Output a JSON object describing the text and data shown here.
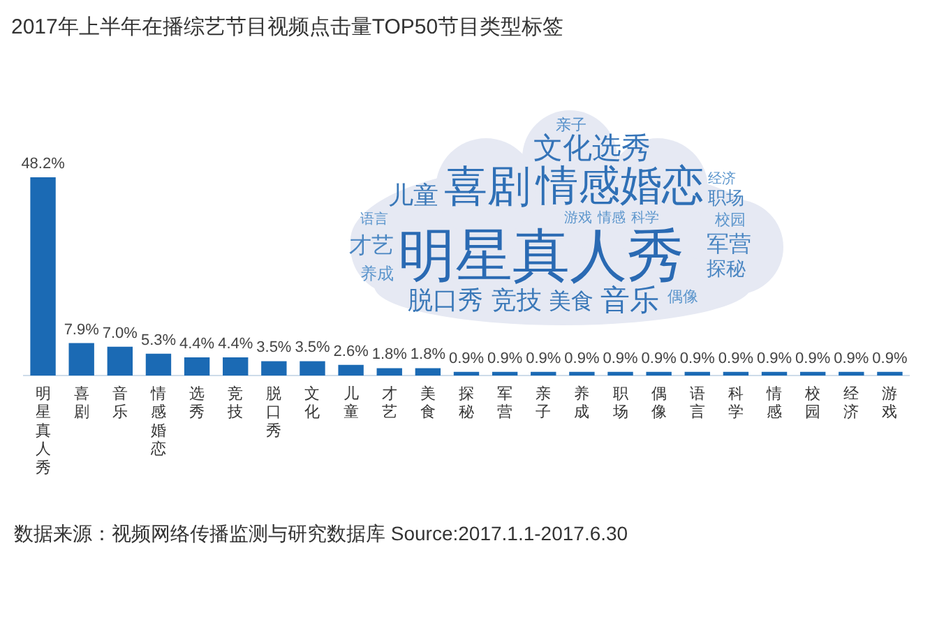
{
  "chart_data": {
    "type": "bar",
    "title": "2017年上半年在播综艺节目视频点击量TOP50节目类型标签",
    "categories": [
      "明星真人秀",
      "喜剧",
      "音乐",
      "情感婚恋",
      "选秀",
      "竞技",
      "脱口秀",
      "文化",
      "儿童",
      "才艺",
      "美食",
      "探秘",
      "军营",
      "亲子",
      "养成",
      "职场",
      "偶像",
      "语言",
      "科学",
      "情感",
      "校园",
      "经济",
      "游戏"
    ],
    "values": [
      48.2,
      7.9,
      7.0,
      5.3,
      4.4,
      4.4,
      3.5,
      3.5,
      2.6,
      1.8,
      1.8,
      0.9,
      0.9,
      0.9,
      0.9,
      0.9,
      0.9,
      0.9,
      0.9,
      0.9,
      0.9,
      0.9,
      0.9
    ],
    "value_labels": [
      "48.2%",
      "7.9%",
      "7.0%",
      "5.3%",
      "4.4%",
      "4.4%",
      "3.5%",
      "3.5%",
      "2.6%",
      "1.8%",
      "1.8%",
      "0.9%",
      "0.9%",
      "0.9%",
      "0.9%",
      "0.9%",
      "0.9%",
      "0.9%",
      "0.9%",
      "0.9%",
      "0.9%",
      "0.9%",
      "0.9%"
    ],
    "color": "#1b6ab4",
    "annotations": [
      "亲子",
      "文化选秀",
      "儿童",
      "喜剧",
      "情感婚恋",
      "经济",
      "职场",
      "语言",
      "游戏",
      "情感",
      "科学",
      "校园",
      "才艺",
      "明星真人秀",
      "军营",
      "探秘",
      "养成",
      "脱口秀",
      "竞技",
      "美食",
      "音乐",
      "偶像",
      "数据来源：视频网络传播监测与研究数据库 Source:2017.1.1-2017.6.30"
    ]
  }
}
